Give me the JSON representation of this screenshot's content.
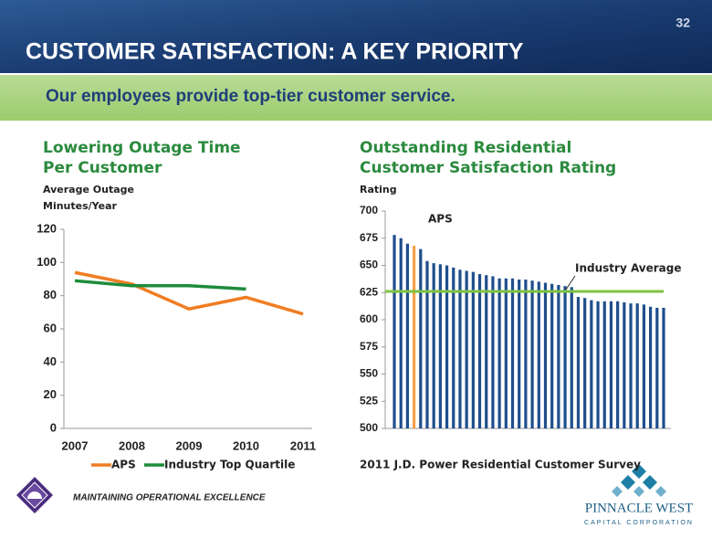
{
  "header": {
    "title": "CUSTOMER SATISFACTION:  A KEY PRIORITY",
    "page_number": "32",
    "subtitle": "Our employees provide top-tier customer service."
  },
  "footer": {
    "tagline": "MAINTAINING OPERATIONAL EXCELLENCE",
    "company": "PINNACLE WEST",
    "company_sub": "CAPITAL CORPORATION"
  },
  "chart_data": [
    {
      "type": "line",
      "title": [
        "Lowering Outage Time",
        "Per Customer"
      ],
      "y_label": [
        "Average Outage",
        "Minutes/Year"
      ],
      "categories": [
        "2007",
        "2008",
        "2009",
        "2010",
        "2011"
      ],
      "series": [
        {
          "name": "APS",
          "color": "#f07d23",
          "values": [
            94,
            87,
            72,
            79,
            69
          ]
        },
        {
          "name": "Industry Top Quartile",
          "color": "#1e8c3c",
          "values": [
            89,
            86,
            86,
            84,
            null
          ]
        }
      ],
      "ylim": [
        0,
        120
      ],
      "yticks": [
        0,
        20,
        40,
        60,
        80,
        100,
        120
      ],
      "legend": "bottom"
    },
    {
      "type": "bar",
      "title": [
        "Outstanding Residential",
        "Customer Satisfaction Rating"
      ],
      "y_label": [
        "Rating"
      ],
      "values": [
        678,
        675,
        670,
        668,
        665,
        654,
        652,
        651,
        650,
        648,
        646,
        645,
        644,
        642,
        641,
        640,
        638,
        638,
        638,
        637,
        637,
        636,
        635,
        634,
        633,
        632,
        631,
        630,
        621,
        620,
        618,
        617,
        617,
        617,
        617,
        616,
        615,
        615,
        614,
        612,
        611,
        611
      ],
      "color": "#1f4e8c",
      "highlight": {
        "index": 3,
        "label": "APS",
        "color": "#f5a04a"
      },
      "reference_line": {
        "value": 626,
        "label": "Industry Average",
        "color": "#7dc242"
      },
      "ylim": [
        500,
        700
      ],
      "yticks": [
        500,
        525,
        550,
        575,
        600,
        625,
        650,
        675,
        700
      ],
      "note": "2011 J.D. Power Residential Customer Survey"
    }
  ]
}
